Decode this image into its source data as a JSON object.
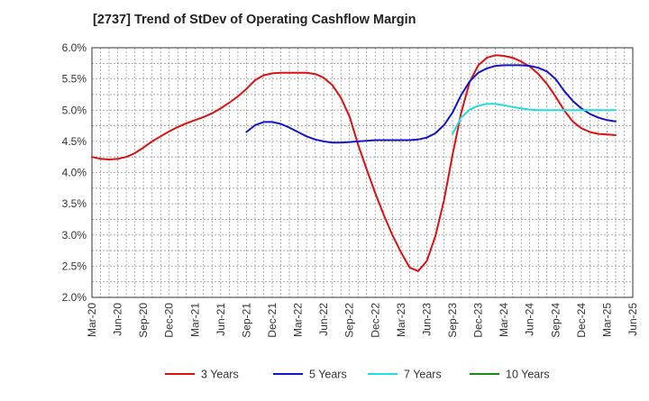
{
  "chart_data": {
    "type": "line",
    "title": "[2737]  Trend of StDev of Operating Cashflow Margin",
    "xlabel": "",
    "ylabel": "",
    "ylim": [
      2.0,
      6.0
    ],
    "yticks": [
      2.0,
      2.5,
      3.0,
      3.5,
      4.0,
      4.5,
      5.0,
      5.5,
      6.0
    ],
    "ytick_labels": [
      "2.0%",
      "2.5%",
      "3.0%",
      "3.5%",
      "4.0%",
      "4.5%",
      "5.0%",
      "5.5%",
      "6.0%"
    ],
    "x_tick_labels": [
      "Mar-20",
      "Jun-20",
      "Sep-20",
      "Dec-20",
      "Mar-21",
      "Jun-21",
      "Sep-21",
      "Dec-21",
      "Mar-22",
      "Jun-22",
      "Sep-22",
      "Dec-22",
      "Mar-23",
      "Jun-23",
      "Sep-23",
      "Dec-23",
      "Mar-24",
      "Jun-24",
      "Sep-24",
      "Dec-24",
      "Mar-25",
      "Jun-25"
    ],
    "grid": true,
    "legend_position": "bottom",
    "series": [
      {
        "name": "3 Years",
        "color": "#dd1111",
        "values": [
          [
            "2020-03",
            4.25
          ],
          [
            "2020-04",
            4.22
          ],
          [
            "2020-05",
            4.21
          ],
          [
            "2020-06",
            4.22
          ],
          [
            "2020-07",
            4.25
          ],
          [
            "2020-08",
            4.31
          ],
          [
            "2020-09",
            4.4
          ],
          [
            "2020-10",
            4.5
          ],
          [
            "2020-11",
            4.58
          ],
          [
            "2020-12",
            4.66
          ],
          [
            "2021-01",
            4.73
          ],
          [
            "2021-02",
            4.79
          ],
          [
            "2021-03",
            4.84
          ],
          [
            "2021-04",
            4.89
          ],
          [
            "2021-05",
            4.95
          ],
          [
            "2021-06",
            5.03
          ],
          [
            "2021-07",
            5.12
          ],
          [
            "2021-08",
            5.22
          ],
          [
            "2021-09",
            5.34
          ],
          [
            "2021-10",
            5.48
          ],
          [
            "2021-11",
            5.56
          ],
          [
            "2021-12",
            5.59
          ],
          [
            "2022-01",
            5.6
          ],
          [
            "2022-02",
            5.6
          ],
          [
            "2022-03",
            5.6
          ],
          [
            "2022-04",
            5.6
          ],
          [
            "2022-05",
            5.58
          ],
          [
            "2022-06",
            5.52
          ],
          [
            "2022-07",
            5.4
          ],
          [
            "2022-08",
            5.2
          ],
          [
            "2022-09",
            4.9
          ],
          [
            "2022-10",
            4.45
          ],
          [
            "2022-11",
            4.05
          ],
          [
            "2022-12",
            3.67
          ],
          [
            "2023-01",
            3.32
          ],
          [
            "2023-02",
            3.0
          ],
          [
            "2023-03",
            2.72
          ],
          [
            "2023-04",
            2.48
          ],
          [
            "2023-05",
            2.42
          ],
          [
            "2023-06",
            2.58
          ],
          [
            "2023-07",
            2.98
          ],
          [
            "2023-08",
            3.55
          ],
          [
            "2023-09",
            4.28
          ],
          [
            "2023-10",
            4.95
          ],
          [
            "2023-11",
            5.45
          ],
          [
            "2023-12",
            5.72
          ],
          [
            "2024-01",
            5.84
          ],
          [
            "2024-02",
            5.88
          ],
          [
            "2024-03",
            5.87
          ],
          [
            "2024-04",
            5.84
          ],
          [
            "2024-05",
            5.78
          ],
          [
            "2024-06",
            5.7
          ],
          [
            "2024-07",
            5.58
          ],
          [
            "2024-08",
            5.42
          ],
          [
            "2024-09",
            5.22
          ],
          [
            "2024-10",
            5.0
          ],
          [
            "2024-11",
            4.82
          ],
          [
            "2024-12",
            4.71
          ],
          [
            "2025-01",
            4.65
          ],
          [
            "2025-02",
            4.62
          ],
          [
            "2025-03",
            4.61
          ],
          [
            "2025-04",
            4.6
          ]
        ]
      },
      {
        "name": "5 Years",
        "color": "#1414c8",
        "values": [
          [
            "2021-09",
            4.65
          ],
          [
            "2021-10",
            4.76
          ],
          [
            "2021-11",
            4.81
          ],
          [
            "2021-12",
            4.81
          ],
          [
            "2022-01",
            4.78
          ],
          [
            "2022-02",
            4.72
          ],
          [
            "2022-03",
            4.65
          ],
          [
            "2022-04",
            4.58
          ],
          [
            "2022-05",
            4.53
          ],
          [
            "2022-06",
            4.5
          ],
          [
            "2022-07",
            4.48
          ],
          [
            "2022-08",
            4.48
          ],
          [
            "2022-09",
            4.49
          ],
          [
            "2022-10",
            4.5
          ],
          [
            "2022-11",
            4.51
          ],
          [
            "2022-12",
            4.52
          ],
          [
            "2023-01",
            4.52
          ],
          [
            "2023-02",
            4.52
          ],
          [
            "2023-03",
            4.52
          ],
          [
            "2023-04",
            4.52
          ],
          [
            "2023-05",
            4.53
          ],
          [
            "2023-06",
            4.56
          ],
          [
            "2023-07",
            4.63
          ],
          [
            "2023-08",
            4.76
          ],
          [
            "2023-09",
            4.96
          ],
          [
            "2023-10",
            5.24
          ],
          [
            "2023-11",
            5.46
          ],
          [
            "2023-12",
            5.6
          ],
          [
            "2024-01",
            5.67
          ],
          [
            "2024-02",
            5.71
          ],
          [
            "2024-03",
            5.72
          ],
          [
            "2024-04",
            5.72
          ],
          [
            "2024-05",
            5.72
          ],
          [
            "2024-06",
            5.71
          ],
          [
            "2024-07",
            5.68
          ],
          [
            "2024-08",
            5.62
          ],
          [
            "2024-09",
            5.5
          ],
          [
            "2024-10",
            5.31
          ],
          [
            "2024-11",
            5.15
          ],
          [
            "2024-12",
            5.03
          ],
          [
            "2025-01",
            4.94
          ],
          [
            "2025-02",
            4.88
          ],
          [
            "2025-03",
            4.84
          ],
          [
            "2025-04",
            4.82
          ]
        ]
      },
      {
        "name": "7 Years",
        "color": "#22dddd",
        "values": [
          [
            "2023-09",
            4.62
          ],
          [
            "2023-10",
            4.88
          ],
          [
            "2023-11",
            5.01
          ],
          [
            "2023-12",
            5.07
          ],
          [
            "2024-01",
            5.1
          ],
          [
            "2024-02",
            5.1
          ],
          [
            "2024-03",
            5.08
          ],
          [
            "2024-04",
            5.05
          ],
          [
            "2024-05",
            5.03
          ],
          [
            "2024-06",
            5.01
          ],
          [
            "2024-07",
            5.0
          ],
          [
            "2024-08",
            5.0
          ],
          [
            "2024-09",
            5.0
          ],
          [
            "2024-10",
            5.0
          ],
          [
            "2024-11",
            5.0
          ],
          [
            "2024-12",
            5.0
          ],
          [
            "2025-01",
            5.0
          ],
          [
            "2025-02",
            5.0
          ],
          [
            "2025-03",
            5.0
          ],
          [
            "2025-04",
            5.0
          ]
        ]
      },
      {
        "name": "10 Years",
        "color": "#1a8a1a",
        "values": []
      }
    ]
  }
}
